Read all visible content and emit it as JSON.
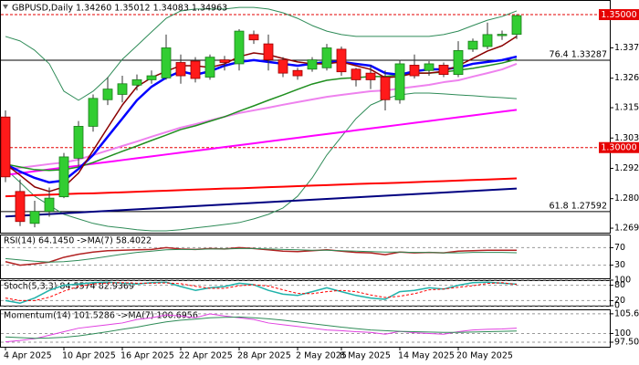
{
  "chart_data": [
    {
      "type": "candlestick",
      "title": "GBPUSD,Daily  1.34260 1.35012 1.34083 1.34963",
      "categories": [
        "4 Apr 2025",
        null,
        null,
        null,
        "10 Apr 2025",
        null,
        null,
        null,
        "16 Apr 2025",
        null,
        null,
        null,
        "22 Apr 2025",
        null,
        null,
        null,
        "28 Apr 2025",
        null,
        null,
        null,
        "2 May 2025",
        null,
        null,
        "8 May 2025",
        null,
        null,
        null,
        "14 May 2025",
        null,
        null,
        null,
        "20 May 2025",
        null,
        null,
        null,
        null
      ],
      "open": [
        1.3115,
        1.2835,
        1.2715,
        1.276,
        1.2815,
        1.296,
        1.308,
        1.318,
        1.32,
        1.3235,
        1.3255,
        1.3262,
        1.332,
        1.3325,
        1.3265,
        1.333,
        1.3315,
        1.3425,
        1.339,
        1.333,
        1.329,
        1.3295,
        1.33,
        1.337,
        1.3295,
        1.328,
        1.3265,
        1.318,
        1.331,
        1.329,
        1.331,
        1.3275,
        1.337,
        1.338,
        1.3421,
        1.3426
      ],
      "high": [
        1.314,
        1.288,
        1.28,
        1.285,
        1.298,
        1.31,
        1.32,
        1.3265,
        1.327,
        1.3275,
        1.329,
        1.3425,
        1.335,
        1.334,
        1.335,
        1.3345,
        1.3445,
        1.344,
        1.3425,
        1.334,
        1.33,
        1.334,
        1.339,
        1.338,
        1.33,
        1.331,
        1.329,
        1.333,
        1.335,
        1.3325,
        1.332,
        1.34,
        1.341,
        1.347,
        1.344,
        1.35012
      ],
      "low": [
        1.287,
        1.2705,
        1.27,
        1.274,
        1.281,
        1.293,
        1.306,
        1.316,
        1.317,
        1.3215,
        1.324,
        1.3255,
        1.324,
        1.3245,
        1.3255,
        1.329,
        1.329,
        1.339,
        1.329,
        1.3265,
        1.3255,
        1.3285,
        1.329,
        1.327,
        1.323,
        1.322,
        1.314,
        1.3165,
        1.326,
        1.327,
        1.3265,
        1.3265,
        1.336,
        1.337,
        1.3405,
        1.34083
      ],
      "close": [
        1.289,
        1.2722,
        1.276,
        1.281,
        1.2965,
        1.308,
        1.3185,
        1.322,
        1.324,
        1.3255,
        1.327,
        1.3375,
        1.327,
        1.326,
        1.334,
        1.332,
        1.3438,
        1.3405,
        1.333,
        1.328,
        1.327,
        1.333,
        1.3375,
        1.3285,
        1.3255,
        1.3255,
        1.318,
        1.3315,
        1.327,
        1.3315,
        1.3275,
        1.3365,
        1.34,
        1.3425,
        1.3426,
        1.34963
      ],
      "up_color": "#32cd32",
      "down_color": "#ff1a1a",
      "ylim": [
        1.268,
        1.3555
      ],
      "yticks": [
        {
          "value": 1.3375,
          "label": "1.33750"
        },
        {
          "value": 1.3261,
          "label": "1.32610"
        },
        {
          "value": 1.315,
          "label": "1.31500"
        },
        {
          "value": 1.3036,
          "label": "1.30360"
        },
        {
          "value": 1.2922,
          "label": "1.29220"
        },
        {
          "value": 1.2808,
          "label": "1.28080"
        },
        {
          "value": 1.2697,
          "label": "1.26970"
        }
      ],
      "levels": [
        {
          "value": 1.35,
          "label": "1.35000"
        },
        {
          "value": 1.3,
          "label": "1.30000"
        }
      ],
      "level_color": "#e60000",
      "fib_levels": [
        {
          "value": 1.33287,
          "label": "76.4 1.33287"
        },
        {
          "value": 1.27592,
          "label": "61.8 1.27592"
        }
      ],
      "series": [
        {
          "color": "#2e8b57",
          "width": 1,
          "values": [
            1.3418,
            1.3401,
            1.3366,
            1.3315,
            1.3212,
            1.3178,
            1.3212,
            1.3263,
            1.3332,
            1.3383,
            1.3435,
            1.3486,
            1.3514,
            1.3521,
            1.3521,
            1.3521,
            1.3527,
            1.3527,
            1.3521,
            1.3507,
            1.3486,
            1.3459,
            1.3438,
            1.3425,
            1.3418,
            1.3418,
            1.3418,
            1.3418,
            1.3418,
            1.3418,
            1.3425,
            1.3438,
            1.3459,
            1.3479,
            1.3493,
            1.3514
          ]
        },
        {
          "color": "#2e8b57",
          "width": 1,
          "values": [
            1.292,
            1.2869,
            1.2817,
            1.2783,
            1.2749,
            1.2732,
            1.2715,
            1.2704,
            1.2698,
            1.2691,
            1.2687,
            1.2687,
            1.2691,
            1.2698,
            1.2704,
            1.2711,
            1.2718,
            1.2732,
            1.2749,
            1.2773,
            1.2817,
            1.2886,
            1.2972,
            1.3041,
            1.3109,
            1.316,
            1.3184,
            1.3198,
            1.3205,
            1.3205,
            1.3202,
            1.3198,
            1.3195,
            1.3191,
            1.3188,
            1.3184
          ]
        },
        {
          "color": "#ff0000",
          "width": 2,
          "values": [
            1.2817,
            1.2819,
            1.2821,
            1.2823,
            1.2825,
            1.2827,
            1.2828,
            1.283,
            1.2832,
            1.2834,
            1.2836,
            1.2838,
            1.284,
            1.2842,
            1.2844,
            1.2846,
            1.2847,
            1.2849,
            1.2851,
            1.2853,
            1.2855,
            1.2857,
            1.2859,
            1.2861,
            1.2863,
            1.2865,
            1.2866,
            1.2868,
            1.287,
            1.2872,
            1.2874,
            1.2876,
            1.2878,
            1.288,
            1.2882,
            1.2884
          ]
        },
        {
          "color": "#000080",
          "width": 2,
          "values": [
            1.2741,
            1.2744,
            1.2747,
            1.275,
            1.2753,
            1.2756,
            1.2759,
            1.2762,
            1.2765,
            1.2768,
            1.2771,
            1.2774,
            1.2777,
            1.278,
            1.2783,
            1.2786,
            1.2789,
            1.2792,
            1.2795,
            1.2798,
            1.2801,
            1.2804,
            1.2807,
            1.281,
            1.2813,
            1.2816,
            1.2819,
            1.2822,
            1.2825,
            1.2828,
            1.2831,
            1.2834,
            1.2837,
            1.284,
            1.2843,
            1.2846
          ]
        },
        {
          "color": "#ff00ff",
          "width": 2,
          "values": [
            1.2897,
            1.2904,
            1.2911,
            1.2918,
            1.2925,
            1.2932,
            1.2939,
            1.2946,
            1.2953,
            1.296,
            1.2967,
            1.2974,
            1.2981,
            1.2988,
            1.2995,
            1.3002,
            1.3009,
            1.3016,
            1.3023,
            1.303,
            1.3037,
            1.3044,
            1.3051,
            1.3058,
            1.3065,
            1.3072,
            1.3079,
            1.3086,
            1.3093,
            1.31,
            1.3107,
            1.3114,
            1.3121,
            1.3128,
            1.3135,
            1.3142
          ]
        },
        {
          "color": "#ee82ee",
          "width": 2,
          "values": [
            1.292,
            1.2924,
            1.2931,
            1.2938,
            1.2944,
            1.2955,
            1.2972,
            1.2989,
            1.3006,
            1.3023,
            1.3041,
            1.3058,
            1.3075,
            1.3088,
            1.3102,
            1.3116,
            1.313,
            1.314,
            1.315,
            1.3161,
            1.3171,
            1.3181,
            1.3191,
            1.3198,
            1.3205,
            1.3212,
            1.3215,
            1.3222,
            1.3229,
            1.3236,
            1.3246,
            1.3253,
            1.3267,
            1.328,
            1.3294,
            1.3315
          ]
        },
        {
          "color": "#1f8f1f",
          "width": 1.5,
          "values": [
            1.2938,
            1.2927,
            1.2917,
            1.2914,
            1.2917,
            1.2927,
            1.2944,
            1.2965,
            1.2986,
            1.3006,
            1.3027,
            1.3047,
            1.3068,
            1.3082,
            1.3099,
            1.3116,
            1.3137,
            1.3157,
            1.3178,
            1.3198,
            1.3219,
            1.3239,
            1.3253,
            1.326,
            1.3263,
            1.3267,
            1.3267,
            1.3274,
            1.328,
            1.328,
            1.3284,
            1.3291,
            1.3298,
            1.3308,
            1.3318,
            1.3332
          ]
        },
        {
          "color": "#0000ff",
          "width": 2.5,
          "values": [
            1.2938,
            1.291,
            1.2886,
            1.2869,
            1.2876,
            1.292,
            1.2972,
            1.3041,
            1.3109,
            1.3178,
            1.3229,
            1.3263,
            1.3287,
            1.3274,
            1.3287,
            1.3308,
            1.3322,
            1.3329,
            1.3322,
            1.3315,
            1.3308,
            1.3315,
            1.3322,
            1.3322,
            1.3315,
            1.3308,
            1.328,
            1.3274,
            1.3287,
            1.3294,
            1.3294,
            1.3301,
            1.3315,
            1.3322,
            1.3329,
            1.3342
          ]
        },
        {
          "color": "#8b0000",
          "width": 1.5,
          "values": [
            1.2938,
            1.2896,
            1.2852,
            1.2835,
            1.2852,
            1.2904,
            1.2989,
            1.3075,
            1.316,
            1.3229,
            1.3263,
            1.3287,
            1.3308,
            1.3308,
            1.3301,
            1.3315,
            1.3342,
            1.3356,
            1.3349,
            1.3335,
            1.3322,
            1.3315,
            1.3315,
            1.3322,
            1.3308,
            1.3294,
            1.3263,
            1.3267,
            1.328,
            1.328,
            1.3287,
            1.3308,
            1.3335,
            1.3363,
            1.3383,
            1.3418
          ]
        }
      ]
    },
    {
      "type": "line",
      "title": "RSI(14) 64.1450 ->MA(7) 58.4022",
      "ylim": [
        0,
        100
      ],
      "yticks": [
        70,
        30
      ],
      "grid": true,
      "series": [
        {
          "color": "#b22222",
          "width": 1.5,
          "values": [
            38,
            30,
            33,
            37,
            48,
            55,
            60,
            63,
            64,
            65,
            66,
            70,
            67,
            66,
            68,
            67,
            70,
            68,
            65,
            62,
            61,
            63,
            65,
            62,
            59,
            58,
            54,
            60,
            58,
            59,
            58,
            62,
            63,
            64,
            64,
            64.145
          ]
        },
        {
          "color": "#2e8b57",
          "width": 1,
          "values": [
            45,
            42,
            39,
            37,
            38,
            41,
            45,
            50,
            55,
            59,
            62,
            65,
            66,
            66,
            67,
            67,
            68,
            68,
            67,
            66,
            65,
            64,
            64,
            63,
            62,
            61,
            60,
            60,
            59,
            59,
            58,
            58,
            59,
            59,
            59,
            58.4022
          ]
        }
      ]
    },
    {
      "type": "line",
      "title": "Stoch(5,3,3) 84.5574 82.9369",
      "ylim": [
        0,
        100
      ],
      "yticks": [
        100,
        80,
        20,
        0
      ],
      "grid": true,
      "series": [
        {
          "color": "#20b2aa",
          "width": 1.5,
          "values": [
            20,
            10,
            30,
            60,
            80,
            85,
            90,
            92,
            88,
            85,
            90,
            92,
            75,
            60,
            70,
            75,
            88,
            82,
            60,
            45,
            40,
            55,
            70,
            55,
            40,
            30,
            25,
            55,
            60,
            70,
            65,
            80,
            90,
            92,
            88,
            84.5574
          ]
        },
        {
          "color": "#ff0000",
          "width": 1,
          "dashed": true,
          "values": [
            30,
            20,
            20,
            33,
            57,
            75,
            85,
            89,
            90,
            88,
            88,
            89,
            86,
            76,
            68,
            68,
            78,
            82,
            77,
            62,
            48,
            47,
            55,
            60,
            55,
            42,
            32,
            37,
            47,
            62,
            65,
            72,
            78,
            87,
            90,
            82.9369
          ]
        }
      ]
    },
    {
      "type": "line",
      "title": "Momentum(14) 101.5286 ->MA(7) 100.6956",
      "ylim": [
        96.2,
        106.9
      ],
      "yticks": [
        105.627,
        100,
        97.5033
      ],
      "grid": true,
      "series": [
        {
          "color": "#e040e0",
          "width": 1,
          "values": [
            97.6,
            98,
            98.5,
            99.5,
            100.5,
            101.5,
            102,
            102.5,
            103,
            104,
            104.5,
            105.3,
            105,
            104.5,
            105.6,
            105,
            104.5,
            104,
            103,
            102.5,
            102,
            101.5,
            101,
            100.8,
            100.5,
            100.3,
            99.8,
            100.6,
            100.2,
            100,
            99.8,
            100.5,
            101,
            101.2,
            101.3,
            101.5286
          ]
        },
        {
          "color": "#2e8b57",
          "width": 1,
          "values": [
            99,
            98.8,
            98.6,
            98.7,
            98.9,
            99.3,
            99.9,
            100.5,
            101.2,
            101.8,
            102.6,
            103.3,
            103.8,
            104.1,
            104.5,
            104.6,
            104.7,
            104.5,
            104.2,
            103.8,
            103.3,
            102.8,
            102.3,
            101.8,
            101.4,
            101,
            100.8,
            100.6,
            100.5,
            100.4,
            100.3,
            100.3,
            100.4,
            100.5,
            100.6,
            100.6956
          ]
        }
      ]
    }
  ]
}
